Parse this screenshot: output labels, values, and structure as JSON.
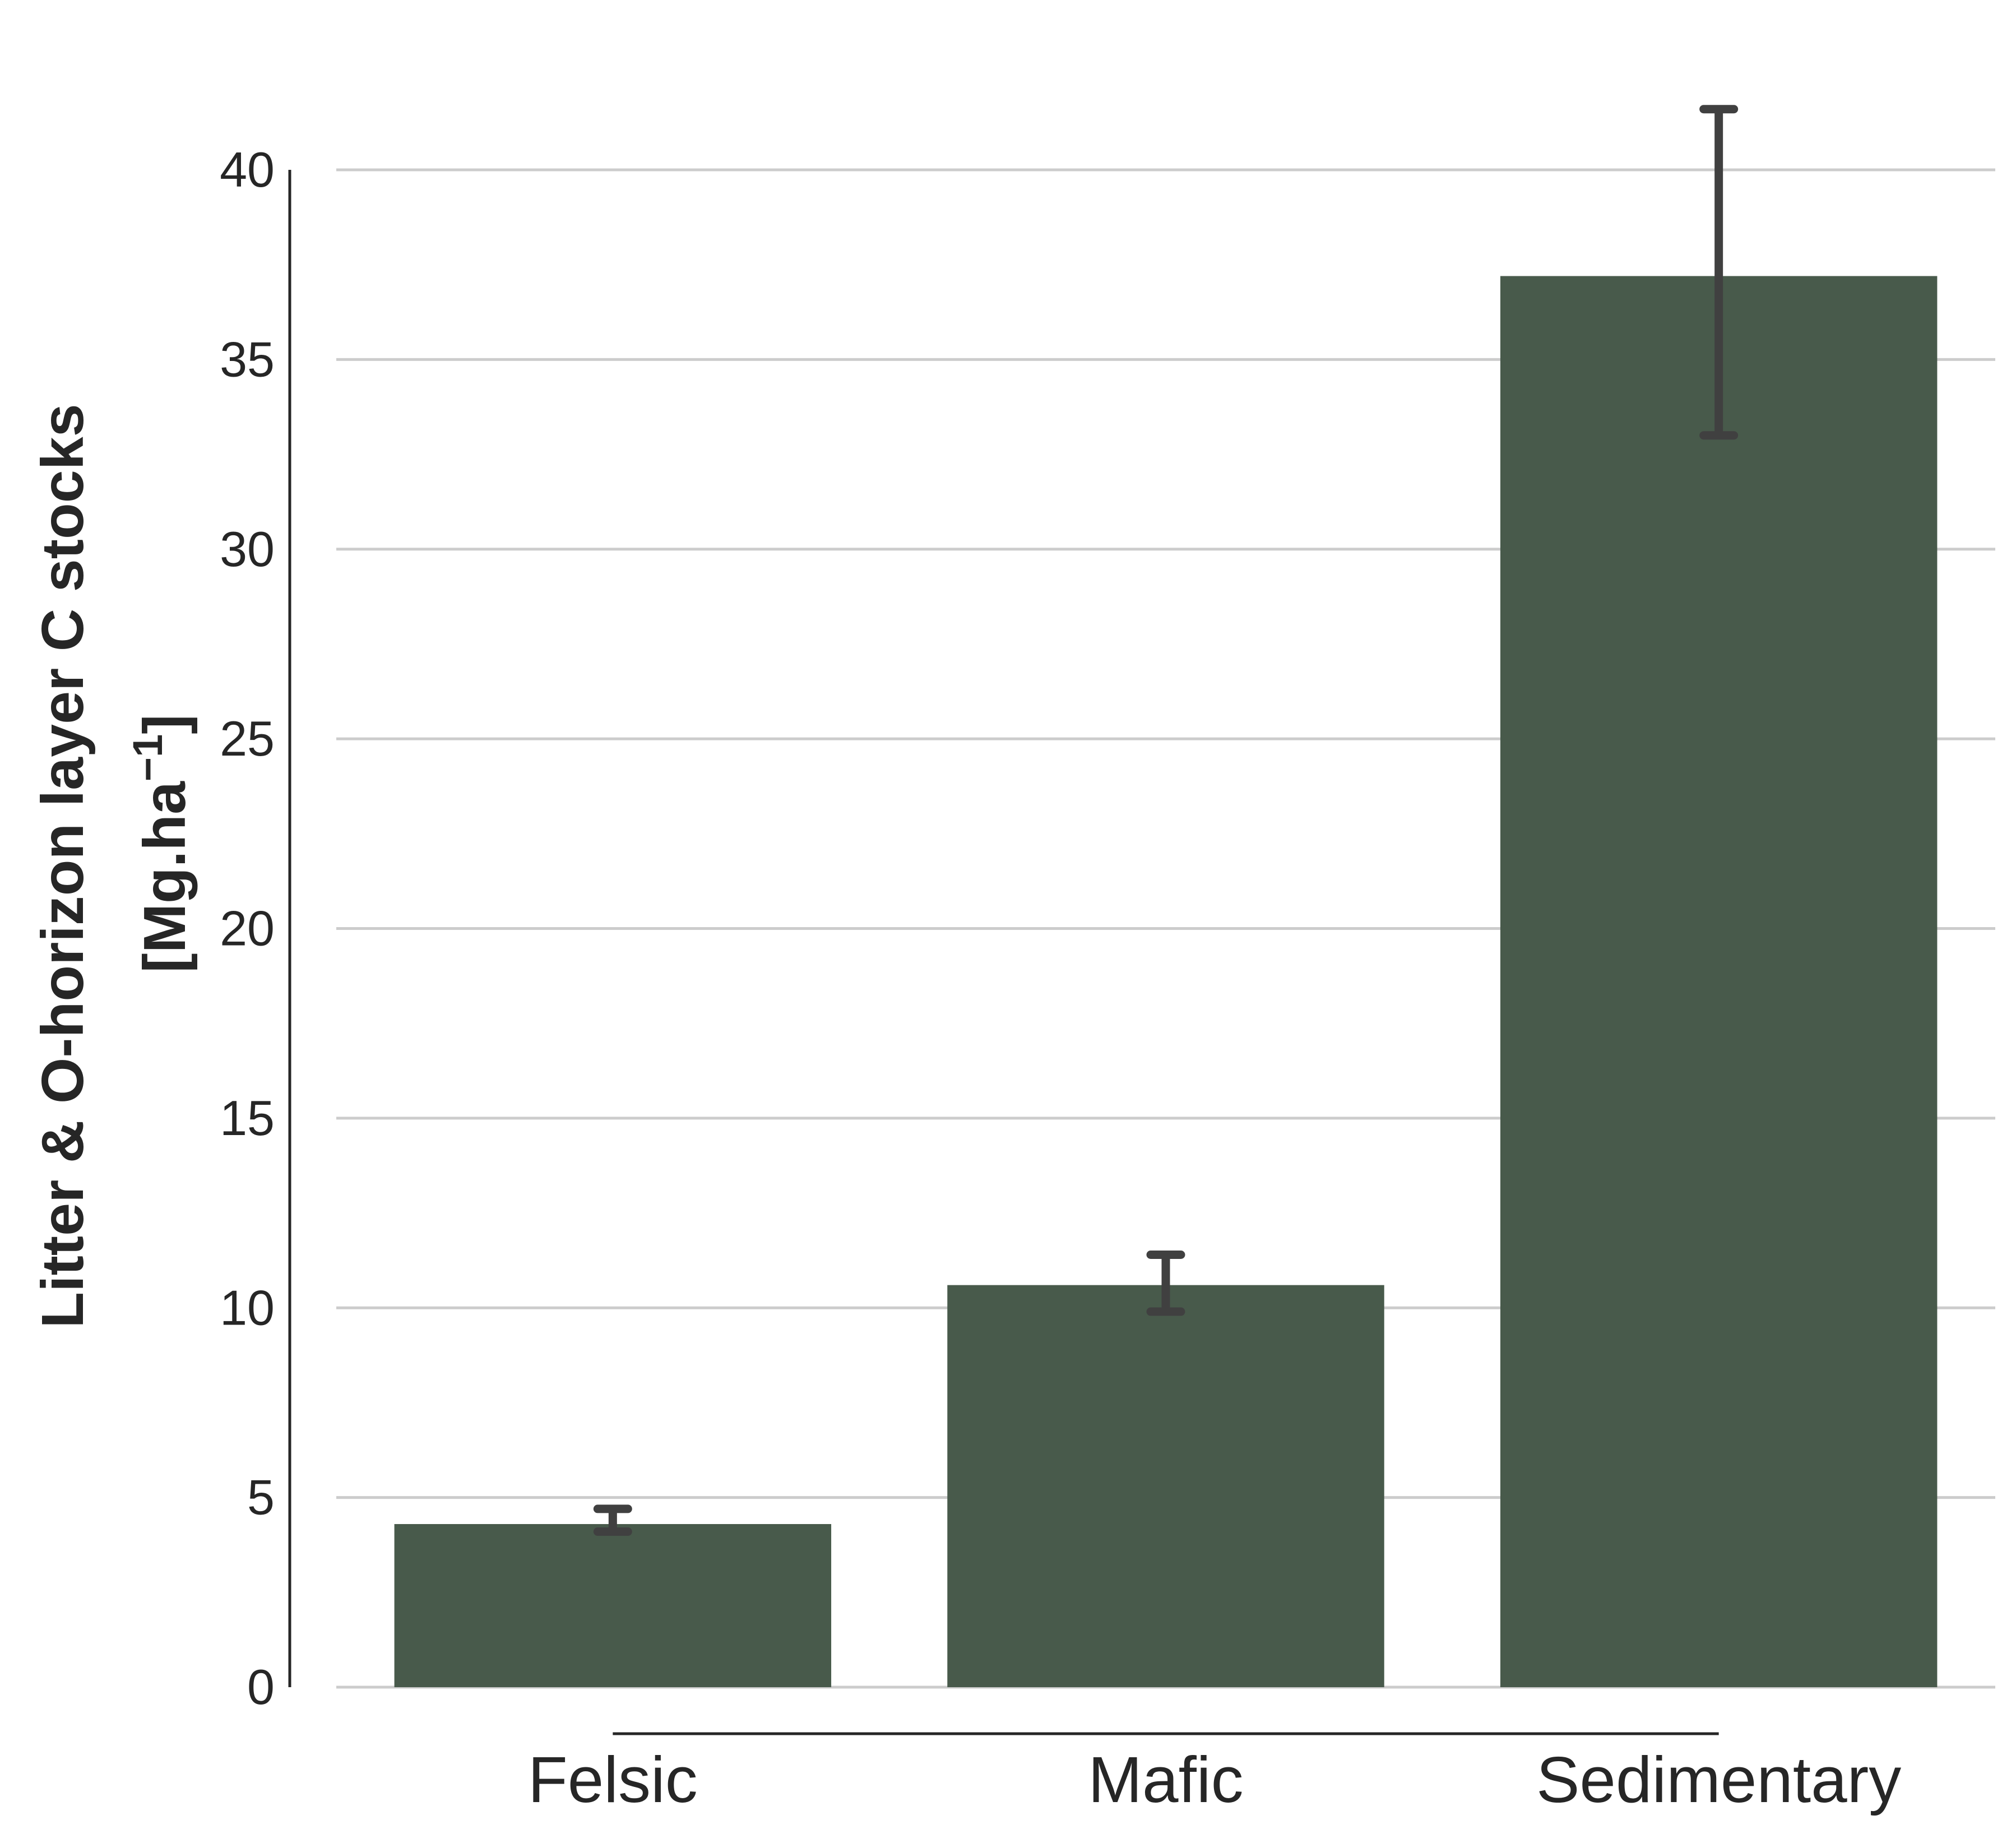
{
  "chart_data": {
    "type": "bar",
    "title": "",
    "xlabel": "",
    "ylabel": "Litter & O-horizon layer C stocks",
    "ylabel_unit_base": "[Mg.ha",
    "ylabel_unit_exp": "−1",
    "ylabel_unit_close": "]",
    "categories": [
      "Felsic",
      "Mafic",
      "Sedimentary"
    ],
    "values": [
      4.3,
      10.6,
      37.2
    ],
    "error_low": [
      4.1,
      9.9,
      33.0
    ],
    "error_high": [
      4.7,
      11.4,
      41.6
    ],
    "ylim": [
      0,
      40
    ],
    "yticks": [
      0,
      5,
      10,
      15,
      20,
      25,
      30,
      35,
      40
    ],
    "grid": "horizontal",
    "bar_color": "#485a4b",
    "error_color": "#404040",
    "grid_color": "#cccccc",
    "axis_color": "#262626"
  }
}
